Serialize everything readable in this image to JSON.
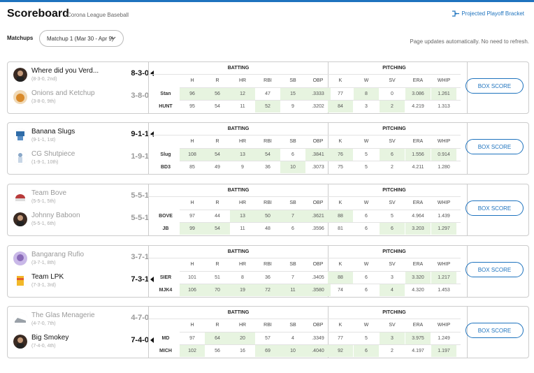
{
  "header": {
    "title": "Scoreboard",
    "subtitle": "Corona League Baseball",
    "projected_link": "Projected Playoff Bracket"
  },
  "controls": {
    "matchups_label": "Matchups",
    "matchup_selected": "Matchup 1 (Mar 30 - Apr 9)",
    "auto_update_note": "Page updates automatically. No need to refresh."
  },
  "columns": {
    "batting_label": "BATTING",
    "pitching_label": "PITCHING",
    "batting": [
      "H",
      "R",
      "HR",
      "RBI",
      "SB",
      "OBP"
    ],
    "pitching": [
      "K",
      "W",
      "SV",
      "ERA",
      "WHIP"
    ]
  },
  "box_score_label": "BOX SCORE",
  "matchups": [
    {
      "teams": [
        {
          "name": "Where did you Verd...",
          "record": "(8-3-0, 2nd)",
          "score": "8-3-0",
          "abbr": "Stan",
          "winner": true,
          "avatar": "person-dark",
          "bat": [
            "96",
            "56",
            "12",
            "47",
            "15",
            ".3333"
          ],
          "pit": [
            "77",
            "8",
            "0",
            "3.086",
            "1.261"
          ]
        },
        {
          "name": "Onions and Ketchup",
          "record": "(3-8-0, 9th)",
          "score": "3-8-0",
          "abbr": "HUNT",
          "winner": false,
          "avatar": "food-orange",
          "bat": [
            "95",
            "54",
            "11",
            "52",
            "9",
            ".3202"
          ],
          "pit": [
            "84",
            "3",
            "2",
            "4.219",
            "1.313"
          ]
        }
      ],
      "hl_top": [
        true,
        true,
        true,
        false,
        true,
        true,
        false,
        true,
        false,
        true,
        true
      ],
      "hl_bot": [
        false,
        false,
        false,
        true,
        false,
        false,
        true,
        false,
        true,
        false,
        false
      ]
    },
    {
      "teams": [
        {
          "name": "Banana Slugs",
          "record": "(9-1-1, 1st)",
          "score": "9-1-1",
          "abbr": "Slug",
          "winner": true,
          "avatar": "slug-blue",
          "bat": [
            "108",
            "54",
            "13",
            "54",
            "6",
            ".3841"
          ],
          "pit": [
            "76",
            "5",
            "6",
            "1.556",
            "0.914"
          ]
        },
        {
          "name": "CG Shutpiece",
          "record": "(1-9-1, 10th)",
          "score": "1-9-1",
          "abbr": "BD3",
          "winner": false,
          "avatar": "figure-white",
          "bat": [
            "85",
            "49",
            "9",
            "36",
            "10",
            ".3073"
          ],
          "pit": [
            "75",
            "5",
            "2",
            "4.211",
            "1.280"
          ]
        }
      ],
      "hl_top": [
        true,
        true,
        true,
        true,
        false,
        true,
        true,
        false,
        true,
        true,
        true
      ],
      "hl_bot": [
        false,
        false,
        false,
        false,
        true,
        false,
        false,
        false,
        false,
        false,
        false
      ]
    },
    {
      "teams": [
        {
          "name": "Team Bove",
          "record": "(5-5-1, 5th)",
          "score": "5-5-1",
          "abbr": "BOVE",
          "winner": false,
          "avatar": "cap-red",
          "bat": [
            "97",
            "44",
            "13",
            "50",
            "7",
            ".3621"
          ],
          "pit": [
            "88",
            "6",
            "5",
            "4.964",
            "1.439"
          ]
        },
        {
          "name": "Johnny Baboon",
          "record": "(5-5-1, 6th)",
          "score": "5-5-1",
          "abbr": "JB",
          "winner": false,
          "avatar": "person-dark",
          "bat": [
            "99",
            "54",
            "11",
            "48",
            "6",
            ".3596"
          ],
          "pit": [
            "81",
            "6",
            "6",
            "3.203",
            "1.297"
          ]
        }
      ],
      "hl_top": [
        false,
        false,
        true,
        true,
        true,
        true,
        true,
        false,
        false,
        false,
        false
      ],
      "hl_bot": [
        true,
        true,
        false,
        false,
        false,
        false,
        false,
        false,
        true,
        true,
        true
      ]
    },
    {
      "teams": [
        {
          "name": "Bangarang Rufio",
          "record": "(3-7-1, 8th)",
          "score": "3-7-1",
          "abbr": "SIER",
          "winner": false,
          "avatar": "character-purple",
          "bat": [
            "101",
            "51",
            "8",
            "36",
            "7",
            ".3405"
          ],
          "pit": [
            "88",
            "6",
            "3",
            "3.320",
            "1.217"
          ]
        },
        {
          "name": "Team LPK",
          "record": "(7-3-1, 3rd)",
          "score": "7-3-1",
          "abbr": "MJK4",
          "winner": true,
          "avatar": "cup-yellow",
          "bat": [
            "106",
            "70",
            "19",
            "72",
            "11",
            ".3580"
          ],
          "pit": [
            "74",
            "6",
            "4",
            "4.320",
            "1.453"
          ]
        }
      ],
      "hl_top": [
        false,
        false,
        false,
        false,
        false,
        false,
        true,
        false,
        false,
        true,
        true
      ],
      "hl_bot": [
        true,
        true,
        true,
        true,
        true,
        true,
        false,
        false,
        true,
        false,
        false
      ]
    },
    {
      "teams": [
        {
          "name": "The Glas Menagerie",
          "record": "(4-7-0, 7th)",
          "score": "4-7-0",
          "abbr": "MD",
          "winner": false,
          "avatar": "shoe-gray",
          "bat": [
            "97",
            "64",
            "20",
            "57",
            "4",
            ".3349"
          ],
          "pit": [
            "77",
            "5",
            "3",
            "3.975",
            "1.249"
          ]
        },
        {
          "name": "Big Smokey",
          "record": "(7-4-0, 4th)",
          "score": "7-4-0",
          "abbr": "MICH",
          "winner": true,
          "avatar": "person-dark",
          "bat": [
            "102",
            "56",
            "16",
            "69",
            "10",
            ".4040"
          ],
          "pit": [
            "92",
            "6",
            "2",
            "4.197",
            "1.197"
          ]
        }
      ],
      "hl_top": [
        false,
        true,
        true,
        false,
        false,
        false,
        false,
        false,
        true,
        true,
        false
      ],
      "hl_bot": [
        true,
        false,
        false,
        true,
        true,
        true,
        true,
        true,
        false,
        false,
        true
      ]
    }
  ]
}
